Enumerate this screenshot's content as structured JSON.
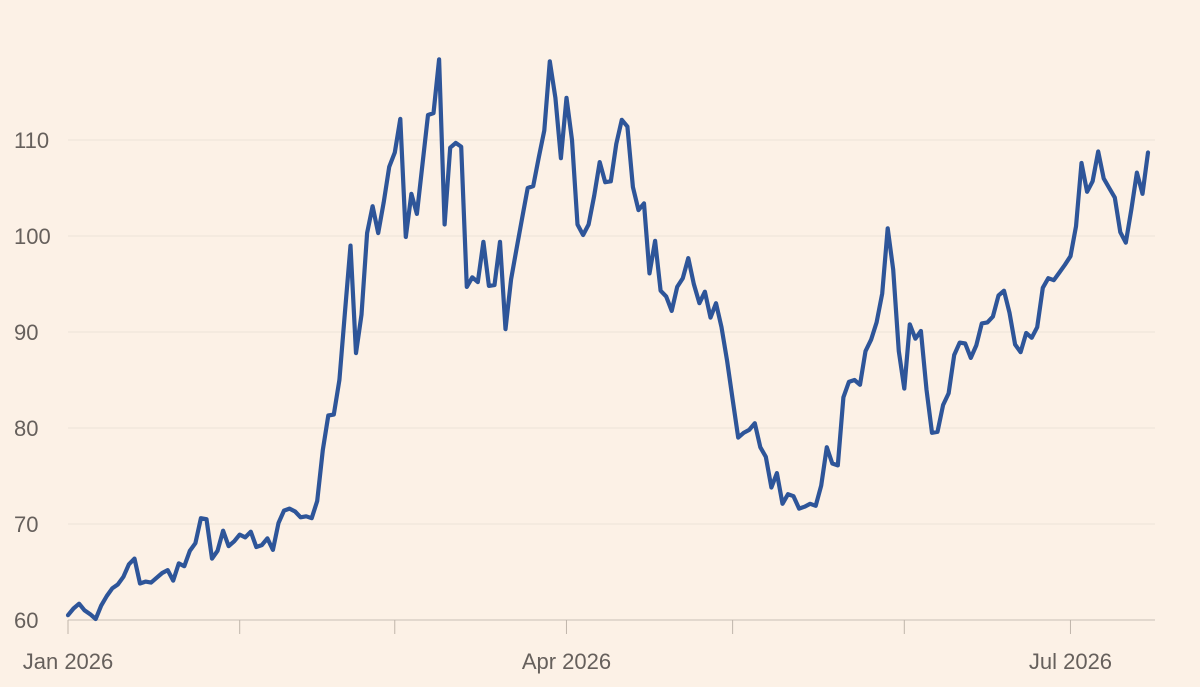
{
  "chart_data": {
    "type": "line",
    "grid": true,
    "ylim": [
      60,
      120
    ],
    "yticks": [
      60,
      70,
      80,
      90,
      100,
      110
    ],
    "xlim": [
      "2026-01-01",
      "2026-09-30"
    ],
    "xtick_labels": [
      {
        "date": "2026-01-01",
        "label": "Jan 2026"
      },
      {
        "date": "2026-04-01",
        "label": "Apr 2026"
      },
      {
        "date": "2026-07-01",
        "label": "Jul 2026"
      }
    ],
    "minor_ticks": [
      "2026-02-01",
      "2026-03-01",
      "2026-05-01",
      "2026-06-01",
      "2026-08-01",
      "2026-09-01"
    ],
    "series": [
      {
        "color": "#2e5599",
        "points": [
          [
            "2026-01-01",
            60.5
          ],
          [
            "2026-01-02",
            61.2
          ],
          [
            "2026-01-03",
            61.7
          ],
          [
            "2026-01-04",
            61.0
          ],
          [
            "2026-01-05",
            60.6
          ],
          [
            "2026-01-06",
            60.1
          ],
          [
            "2026-01-07",
            61.5
          ],
          [
            "2026-01-08",
            62.5
          ],
          [
            "2026-01-09",
            63.3
          ],
          [
            "2026-01-10",
            63.7
          ],
          [
            "2026-01-11",
            64.5
          ],
          [
            "2026-01-12",
            65.8
          ],
          [
            "2026-01-13",
            66.4
          ],
          [
            "2026-01-14",
            63.8
          ],
          [
            "2026-01-15",
            64.0
          ],
          [
            "2026-01-16",
            63.9
          ],
          [
            "2026-01-17",
            64.4
          ],
          [
            "2026-01-18",
            64.9
          ],
          [
            "2026-01-19",
            65.2
          ],
          [
            "2026-01-20",
            64.1
          ],
          [
            "2026-01-21",
            65.9
          ],
          [
            "2026-01-22",
            65.6
          ],
          [
            "2026-01-23",
            67.2
          ],
          [
            "2026-01-24",
            68.0
          ],
          [
            "2026-01-25",
            70.6
          ],
          [
            "2026-01-26",
            70.5
          ],
          [
            "2026-01-27",
            66.4
          ],
          [
            "2026-01-28",
            67.2
          ],
          [
            "2026-01-29",
            69.3
          ],
          [
            "2026-01-30",
            67.7
          ],
          [
            "2026-01-31",
            68.2
          ],
          [
            "2026-02-01",
            68.9
          ],
          [
            "2026-02-02",
            68.6
          ],
          [
            "2026-02-03",
            69.2
          ],
          [
            "2026-02-04",
            67.6
          ],
          [
            "2026-02-05",
            67.8
          ],
          [
            "2026-02-06",
            68.5
          ],
          [
            "2026-02-07",
            67.3
          ],
          [
            "2026-02-08",
            70.1
          ],
          [
            "2026-02-09",
            71.4
          ],
          [
            "2026-02-10",
            71.6
          ],
          [
            "2026-02-11",
            71.3
          ],
          [
            "2026-02-12",
            70.7
          ],
          [
            "2026-02-13",
            70.8
          ],
          [
            "2026-02-14",
            70.6
          ],
          [
            "2026-02-15",
            72.4
          ],
          [
            "2026-02-16",
            77.7
          ],
          [
            "2026-02-17",
            81.3
          ],
          [
            "2026-02-18",
            81.4
          ],
          [
            "2026-02-19",
            85.0
          ],
          [
            "2026-02-20",
            92.0
          ],
          [
            "2026-02-21",
            99.0
          ],
          [
            "2026-02-22",
            87.8
          ],
          [
            "2026-02-23",
            91.8
          ],
          [
            "2026-02-24",
            100.3
          ],
          [
            "2026-02-25",
            103.1
          ],
          [
            "2026-02-26",
            100.3
          ],
          [
            "2026-02-27",
            103.5
          ],
          [
            "2026-02-28",
            107.2
          ],
          [
            "2026-03-01",
            108.7
          ],
          [
            "2026-03-02",
            112.2
          ],
          [
            "2026-03-03",
            99.9
          ],
          [
            "2026-03-04",
            104.4
          ],
          [
            "2026-03-05",
            102.3
          ],
          [
            "2026-03-06",
            107.5
          ],
          [
            "2026-03-07",
            112.6
          ],
          [
            "2026-03-08",
            112.8
          ],
          [
            "2026-03-09",
            118.4
          ],
          [
            "2026-03-10",
            101.2
          ],
          [
            "2026-03-11",
            109.2
          ],
          [
            "2026-03-12",
            109.7
          ],
          [
            "2026-03-13",
            109.3
          ],
          [
            "2026-03-14",
            94.7
          ],
          [
            "2026-03-15",
            95.7
          ],
          [
            "2026-03-16",
            95.2
          ],
          [
            "2026-03-17",
            99.4
          ],
          [
            "2026-03-18",
            94.8
          ],
          [
            "2026-03-19",
            94.9
          ],
          [
            "2026-03-20",
            99.4
          ],
          [
            "2026-03-21",
            90.3
          ],
          [
            "2026-03-22",
            95.5
          ],
          [
            "2026-03-23",
            98.7
          ],
          [
            "2026-03-24",
            101.9
          ],
          [
            "2026-03-25",
            105.0
          ],
          [
            "2026-03-26",
            105.2
          ],
          [
            "2026-03-27",
            108.2
          ],
          [
            "2026-03-28",
            111.0
          ],
          [
            "2026-03-29",
            118.2
          ],
          [
            "2026-03-30",
            114.4
          ],
          [
            "2026-03-31",
            108.1
          ],
          [
            "2026-04-01",
            114.4
          ],
          [
            "2026-04-02",
            110.0
          ],
          [
            "2026-04-03",
            101.2
          ],
          [
            "2026-04-04",
            100.1
          ],
          [
            "2026-04-05",
            101.2
          ],
          [
            "2026-04-06",
            104.2
          ],
          [
            "2026-04-07",
            107.7
          ],
          [
            "2026-04-08",
            105.6
          ],
          [
            "2026-04-09",
            105.7
          ],
          [
            "2026-04-10",
            109.6
          ],
          [
            "2026-04-11",
            112.1
          ],
          [
            "2026-04-12",
            111.4
          ],
          [
            "2026-04-13",
            105.1
          ],
          [
            "2026-04-14",
            102.7
          ],
          [
            "2026-04-15",
            103.4
          ],
          [
            "2026-04-16",
            96.1
          ],
          [
            "2026-04-17",
            99.5
          ],
          [
            "2026-04-18",
            94.3
          ],
          [
            "2026-04-19",
            93.7
          ],
          [
            "2026-04-20",
            92.2
          ],
          [
            "2026-04-21",
            94.7
          ],
          [
            "2026-04-22",
            95.6
          ],
          [
            "2026-04-23",
            97.7
          ],
          [
            "2026-04-24",
            95.0
          ],
          [
            "2026-04-25",
            93.0
          ],
          [
            "2026-04-26",
            94.2
          ],
          [
            "2026-04-27",
            91.5
          ],
          [
            "2026-04-28",
            93.0
          ],
          [
            "2026-04-29",
            90.5
          ],
          [
            "2026-04-30",
            87.0
          ],
          [
            "2026-05-01",
            83.0
          ],
          [
            "2026-05-02",
            79.0
          ],
          [
            "2026-05-03",
            79.5
          ],
          [
            "2026-05-04",
            79.8
          ],
          [
            "2026-05-05",
            80.5
          ],
          [
            "2026-05-06",
            78.0
          ],
          [
            "2026-05-07",
            77.0
          ],
          [
            "2026-05-08",
            73.8
          ],
          [
            "2026-05-09",
            75.3
          ],
          [
            "2026-05-10",
            72.1
          ],
          [
            "2026-05-11",
            73.1
          ],
          [
            "2026-05-12",
            72.9
          ],
          [
            "2026-05-13",
            71.6
          ],
          [
            "2026-05-14",
            71.8
          ],
          [
            "2026-05-15",
            72.1
          ],
          [
            "2026-05-16",
            71.9
          ],
          [
            "2026-05-17",
            74.0
          ],
          [
            "2026-05-18",
            78.0
          ],
          [
            "2026-05-19",
            76.3
          ],
          [
            "2026-05-20",
            76.1
          ],
          [
            "2026-05-21",
            83.2
          ],
          [
            "2026-05-22",
            84.8
          ],
          [
            "2026-05-23",
            85.0
          ],
          [
            "2026-05-24",
            84.5
          ],
          [
            "2026-05-25",
            88.0
          ],
          [
            "2026-05-26",
            89.2
          ],
          [
            "2026-05-27",
            91.0
          ],
          [
            "2026-05-28",
            94.0
          ],
          [
            "2026-05-29",
            100.8
          ],
          [
            "2026-05-30",
            96.5
          ],
          [
            "2026-05-31",
            88.0
          ],
          [
            "2026-06-01",
            84.1
          ],
          [
            "2026-06-02",
            90.8
          ],
          [
            "2026-06-03",
            89.3
          ],
          [
            "2026-06-04",
            90.1
          ],
          [
            "2026-06-05",
            84.0
          ],
          [
            "2026-06-06",
            79.5
          ],
          [
            "2026-06-07",
            79.6
          ],
          [
            "2026-06-08",
            82.4
          ],
          [
            "2026-06-09",
            83.6
          ],
          [
            "2026-06-10",
            87.6
          ],
          [
            "2026-06-11",
            88.9
          ],
          [
            "2026-06-12",
            88.8
          ],
          [
            "2026-06-13",
            87.3
          ],
          [
            "2026-06-14",
            88.6
          ],
          [
            "2026-06-15",
            90.9
          ],
          [
            "2026-06-16",
            91.0
          ],
          [
            "2026-06-17",
            91.6
          ],
          [
            "2026-06-18",
            93.8
          ],
          [
            "2026-06-19",
            94.3
          ],
          [
            "2026-06-20",
            92.0
          ],
          [
            "2026-06-21",
            88.7
          ],
          [
            "2026-06-22",
            87.9
          ],
          [
            "2026-06-23",
            89.9
          ],
          [
            "2026-06-24",
            89.4
          ],
          [
            "2026-06-25",
            90.5
          ],
          [
            "2026-06-26",
            94.6
          ],
          [
            "2026-06-27",
            95.6
          ],
          [
            "2026-06-28",
            95.4
          ],
          [
            "2026-06-29",
            96.2
          ],
          [
            "2026-06-30",
            97.0
          ],
          [
            "2026-07-01",
            97.9
          ],
          [
            "2026-07-02",
            101.0
          ],
          [
            "2026-07-03",
            107.6
          ],
          [
            "2026-07-04",
            104.6
          ],
          [
            "2026-07-05",
            105.7
          ],
          [
            "2026-07-06",
            108.8
          ],
          [
            "2026-07-07",
            106.0
          ],
          [
            "2026-07-08",
            105.0
          ],
          [
            "2026-07-09",
            104.0
          ],
          [
            "2026-07-10",
            100.4
          ],
          [
            "2026-07-11",
            99.3
          ],
          [
            "2026-07-12",
            102.8
          ],
          [
            "2026-07-13",
            106.6
          ],
          [
            "2026-07-14",
            104.4
          ],
          [
            "2026-07-15",
            108.7
          ]
        ]
      }
    ]
  }
}
